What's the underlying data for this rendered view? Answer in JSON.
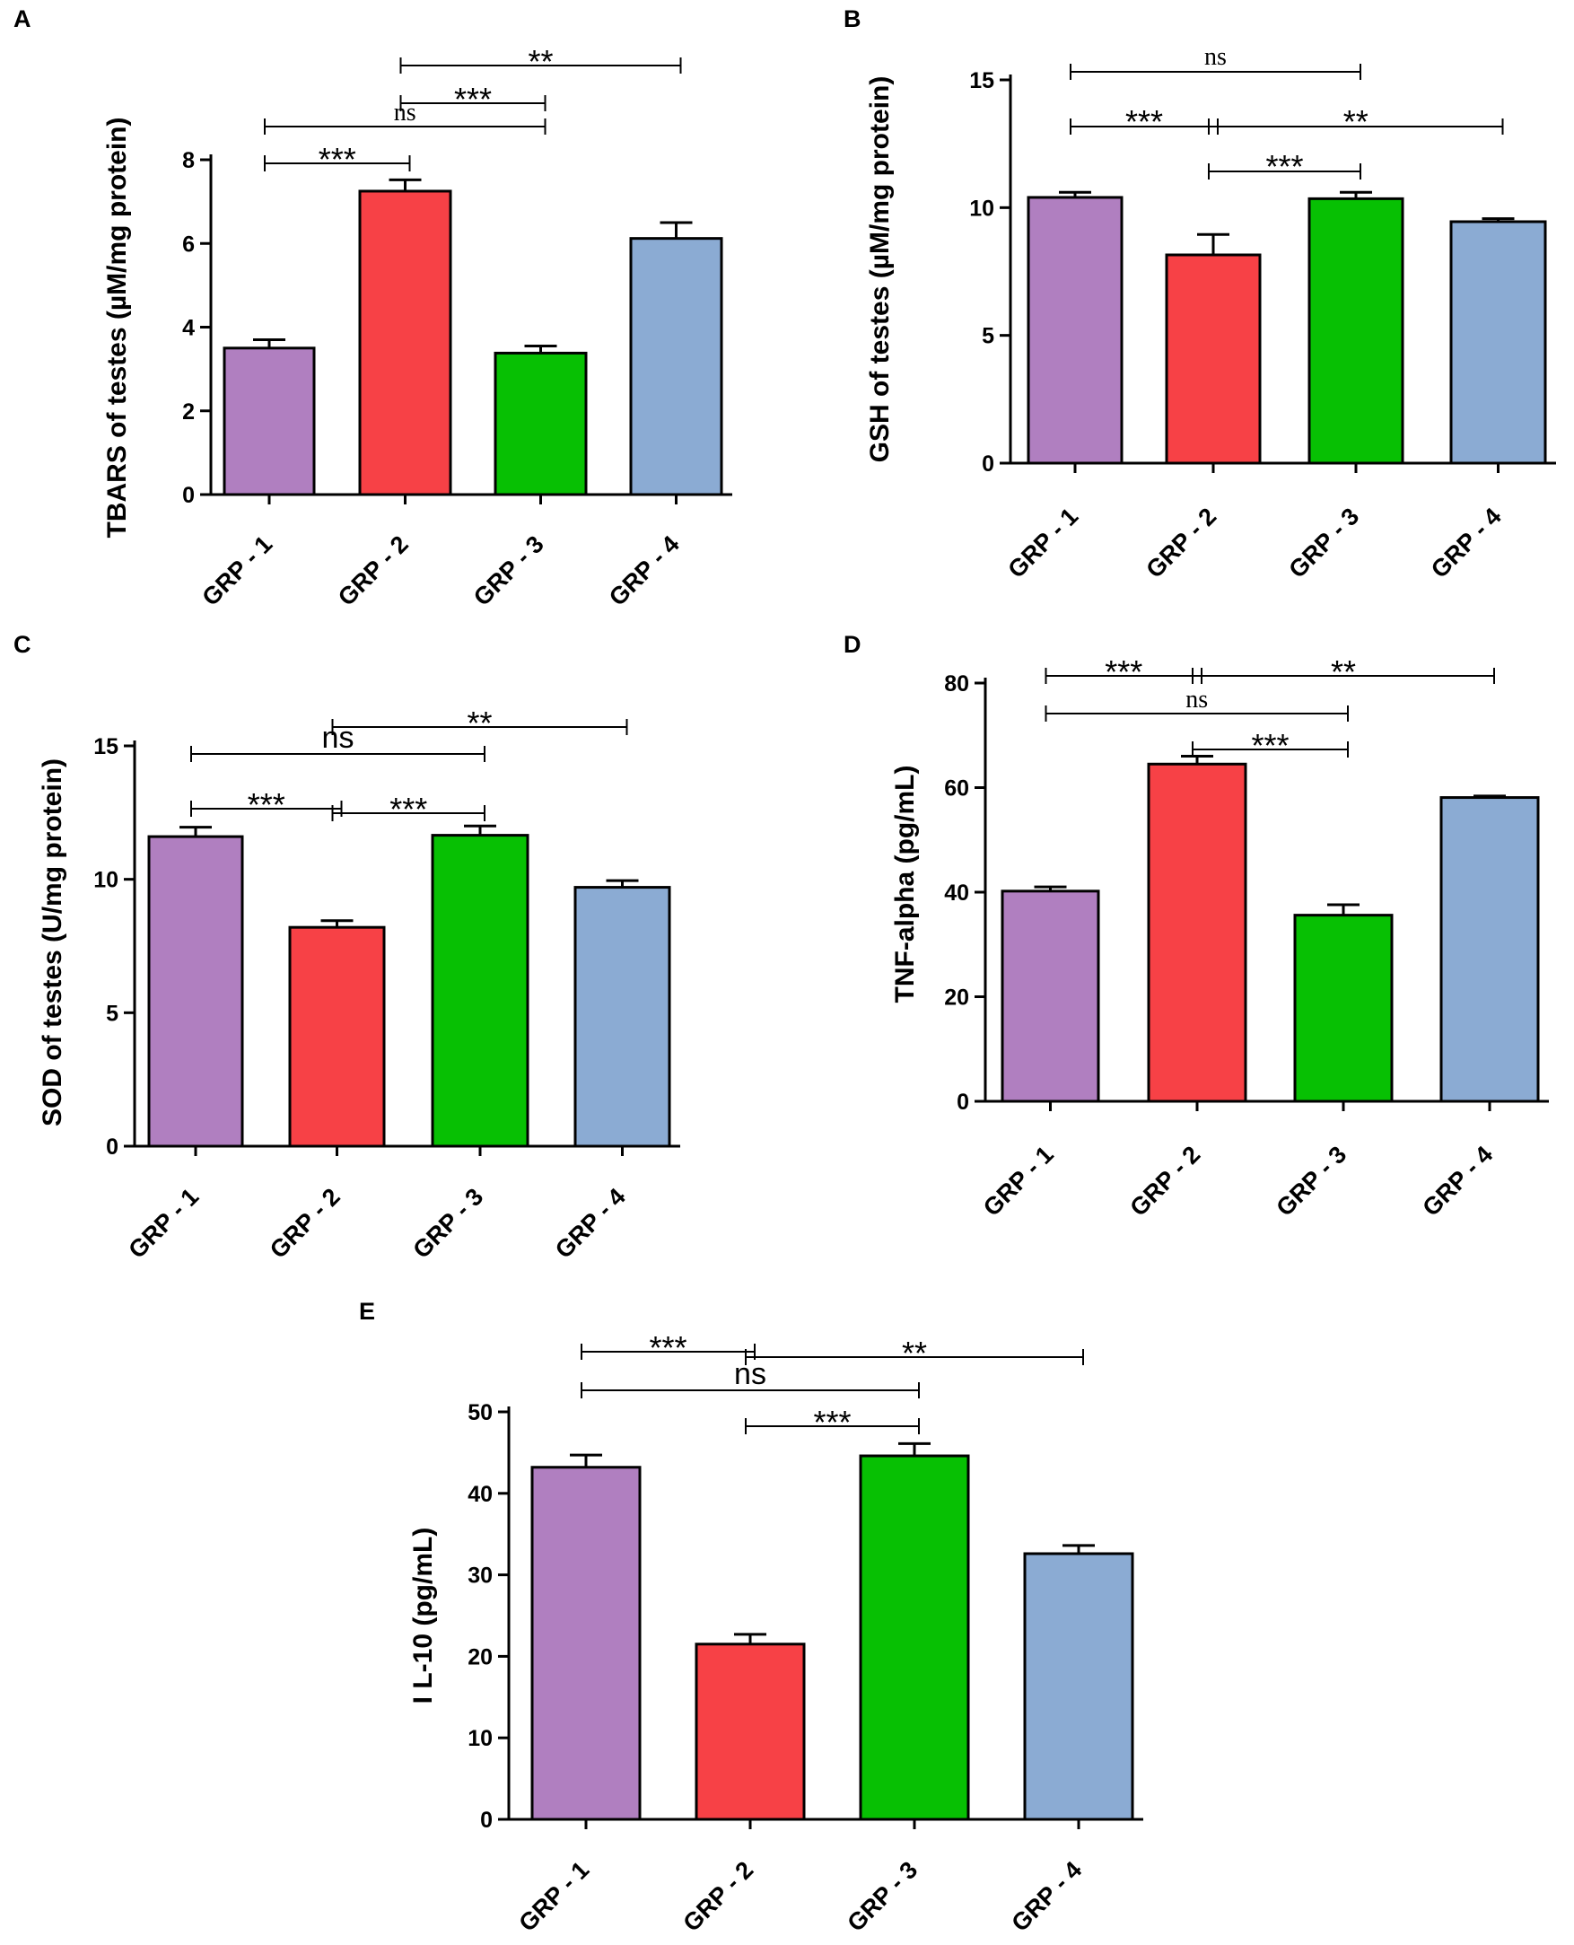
{
  "colors": {
    "grp1": "#B07FC0",
    "grp2": "#F74146",
    "grp3": "#07C003",
    "grp4": "#8BABD3",
    "axis": "#000000"
  },
  "chart_data": [
    {
      "type": "bar",
      "panel": "A",
      "categories": [
        "GRP - 1",
        "GRP - 2",
        "GRP - 3",
        "GRP - 4"
      ],
      "values": [
        3.5,
        7.25,
        3.38,
        6.12
      ],
      "errors": [
        0.2,
        0.27,
        0.17,
        0.38
      ],
      "ylabel": "TBARS of  testes (µM/mg protein)",
      "ylim": [
        0,
        8
      ],
      "yticks": [
        "0",
        "2",
        "4",
        "6",
        "8"
      ],
      "significance": [
        {
          "from": 0,
          "to": 1,
          "label": "***"
        },
        {
          "from": 0,
          "to": 2,
          "label": "ns"
        },
        {
          "from": 1,
          "to": 2,
          "label": "***"
        },
        {
          "from": 1,
          "to": 3,
          "label": "**"
        }
      ]
    },
    {
      "type": "bar",
      "panel": "B",
      "categories": [
        "GRP - 1",
        "GRP - 2",
        "GRP - 3",
        "GRP - 4"
      ],
      "values": [
        10.4,
        8.15,
        10.35,
        9.45
      ],
      "errors": [
        0.2,
        0.8,
        0.25,
        0.12
      ],
      "ylabel": "GSH  of testes (µM/mg protein)",
      "ylim": [
        0,
        15
      ],
      "yticks": [
        "0",
        "5",
        "10",
        "15"
      ],
      "significance": [
        {
          "from": 0,
          "to": 2,
          "label": "ns"
        },
        {
          "from": 0,
          "to": 1,
          "label": "***"
        },
        {
          "from": 1,
          "to": 3,
          "label": "**"
        },
        {
          "from": 1,
          "to": 2,
          "label": "***"
        }
      ]
    },
    {
      "type": "bar",
      "panel": "C",
      "categories": [
        "GRP - 1",
        "GRP - 2",
        "GRP - 3",
        "GRP - 4"
      ],
      "values": [
        11.6,
        8.2,
        11.65,
        9.7
      ],
      "errors": [
        0.35,
        0.25,
        0.35,
        0.25
      ],
      "ylabel": "SOD  of  testes (U/mg protein)",
      "ylim": [
        0,
        15
      ],
      "yticks": [
        "0",
        "5",
        "10",
        "15"
      ],
      "significance": [
        {
          "from": 1,
          "to": 3,
          "label": "**"
        },
        {
          "from": 0,
          "to": 2,
          "label": "ns"
        },
        {
          "from": 0,
          "to": 1,
          "label": "***"
        },
        {
          "from": 1,
          "to": 2,
          "label": "***"
        }
      ]
    },
    {
      "type": "bar",
      "panel": "D",
      "categories": [
        "GRP - 1",
        "GRP - 2",
        "GRP - 3",
        "GRP - 4"
      ],
      "values": [
        40.2,
        64.5,
        35.6,
        58.1
      ],
      "errors": [
        0.8,
        1.5,
        2.0,
        0.3
      ],
      "ylabel": "TNF-alpha (pg/mL)",
      "ylim": [
        0,
        80
      ],
      "yticks": [
        "0",
        "20",
        "40",
        "60",
        "80"
      ],
      "significance": [
        {
          "from": 0,
          "to": 1,
          "label": "***"
        },
        {
          "from": 1,
          "to": 3,
          "label": "**"
        },
        {
          "from": 0,
          "to": 2,
          "label": "ns"
        },
        {
          "from": 1,
          "to": 2,
          "label": "***"
        }
      ]
    },
    {
      "type": "bar",
      "panel": "E",
      "categories": [
        "GRP - 1",
        "GRP - 2",
        "GRP - 3",
        "GRP - 4"
      ],
      "values": [
        43.2,
        21.5,
        44.6,
        32.6
      ],
      "errors": [
        1.5,
        1.2,
        1.5,
        1.0
      ],
      "ylabel": "I L-10 (pg/mL)",
      "ylim": [
        0,
        50
      ],
      "yticks": [
        "0",
        "10",
        "20",
        "30",
        "40",
        "50"
      ],
      "significance": [
        {
          "from": 0,
          "to": 1,
          "label": "***"
        },
        {
          "from": 1,
          "to": 3,
          "label": "**"
        },
        {
          "from": 0,
          "to": 2,
          "label": "ns"
        },
        {
          "from": 1,
          "to": 2,
          "label": "***"
        }
      ]
    }
  ]
}
